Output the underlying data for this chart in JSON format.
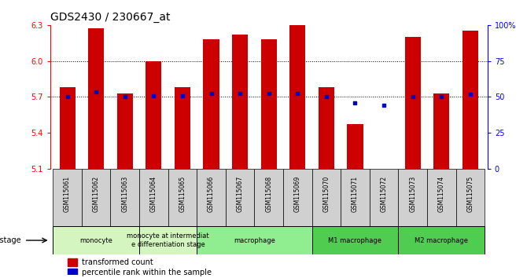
{
  "title": "GDS2430 / 230667_at",
  "samples": [
    "GSM115061",
    "GSM115062",
    "GSM115063",
    "GSM115064",
    "GSM115065",
    "GSM115066",
    "GSM115067",
    "GSM115068",
    "GSM115069",
    "GSM115070",
    "GSM115071",
    "GSM115072",
    "GSM115073",
    "GSM115074",
    "GSM115075"
  ],
  "bar_values": [
    5.78,
    6.27,
    5.73,
    6.0,
    5.78,
    6.18,
    6.22,
    6.18,
    6.3,
    5.78,
    5.47,
    5.1,
    6.2,
    5.73,
    6.25
  ],
  "dot_values": [
    5.7,
    5.74,
    5.7,
    5.71,
    5.71,
    5.73,
    5.73,
    5.73,
    5.73,
    5.7,
    5.65,
    5.63,
    5.7,
    5.7,
    5.72
  ],
  "ylim": [
    5.1,
    6.3
  ],
  "yticks": [
    5.1,
    5.4,
    5.7,
    6.0,
    6.3
  ],
  "ytick_labels": [
    "5.1",
    "5.4",
    "5.7",
    "6.0",
    "6.3"
  ],
  "right_yticks": [
    0,
    25,
    50,
    75,
    100
  ],
  "right_ytick_labels": [
    "0",
    "25",
    "50",
    "75",
    "100%"
  ],
  "bar_color": "#cc0000",
  "dot_color": "#0000cc",
  "background_color": "#ffffff",
  "group_defs": [
    {
      "start": 0,
      "end": 2,
      "label": "monocyte",
      "color": "#d5f5c0"
    },
    {
      "start": 3,
      "end": 4,
      "label": "monocyte at intermediat\ne differentiation stage",
      "color": "#d5f5c0"
    },
    {
      "start": 5,
      "end": 8,
      "label": "macrophage",
      "color": "#90ee90"
    },
    {
      "start": 9,
      "end": 11,
      "label": "M1 macrophage",
      "color": "#50cc50"
    },
    {
      "start": 12,
      "end": 14,
      "label": "M2 macrophage",
      "color": "#50cc50"
    }
  ],
  "title_fontsize": 10,
  "tick_fontsize": 7,
  "bar_width": 0.55
}
